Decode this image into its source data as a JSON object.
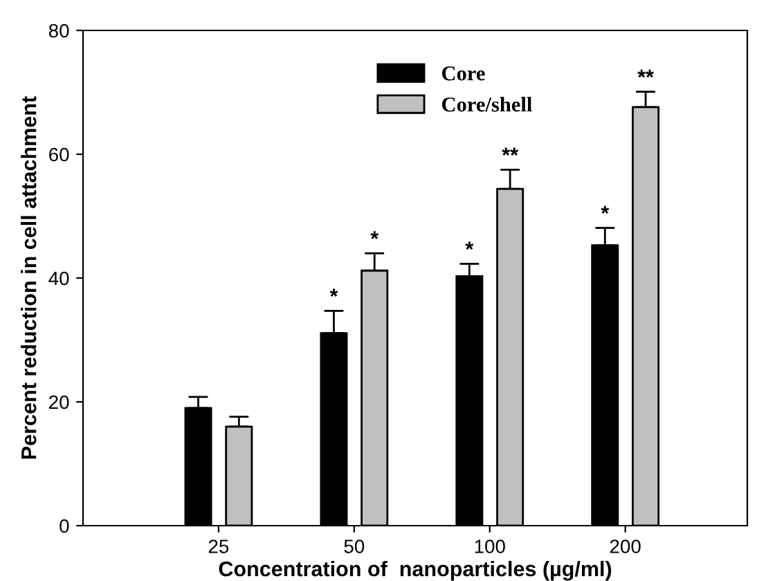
{
  "chart_data": {
    "type": "bar",
    "xlabel": "Concentration of  nanoparticles (µg/ml)",
    "ylabel": "Percent reduction in cell attachment",
    "categories": [
      "25",
      "50",
      "100",
      "200"
    ],
    "series": [
      {
        "name": "Core",
        "color": "#000000",
        "values": [
          19.0,
          31.1,
          40.3,
          45.3
        ],
        "errors": [
          1.8,
          3.6,
          2.0,
          2.8
        ],
        "value_labels": [
          null,
          "*",
          "*",
          "*"
        ]
      },
      {
        "name": "Core/shell",
        "color": "#c0c0c0",
        "values": [
          16.0,
          41.2,
          54.4,
          67.6
        ],
        "errors": [
          1.6,
          2.8,
          3.1,
          2.5
        ],
        "value_labels": [
          null,
          "*",
          "**",
          "**"
        ]
      }
    ],
    "ylim": [
      0,
      80
    ],
    "yticks": [
      0,
      20,
      40,
      60,
      80
    ],
    "grid": false,
    "legend": "top"
  }
}
